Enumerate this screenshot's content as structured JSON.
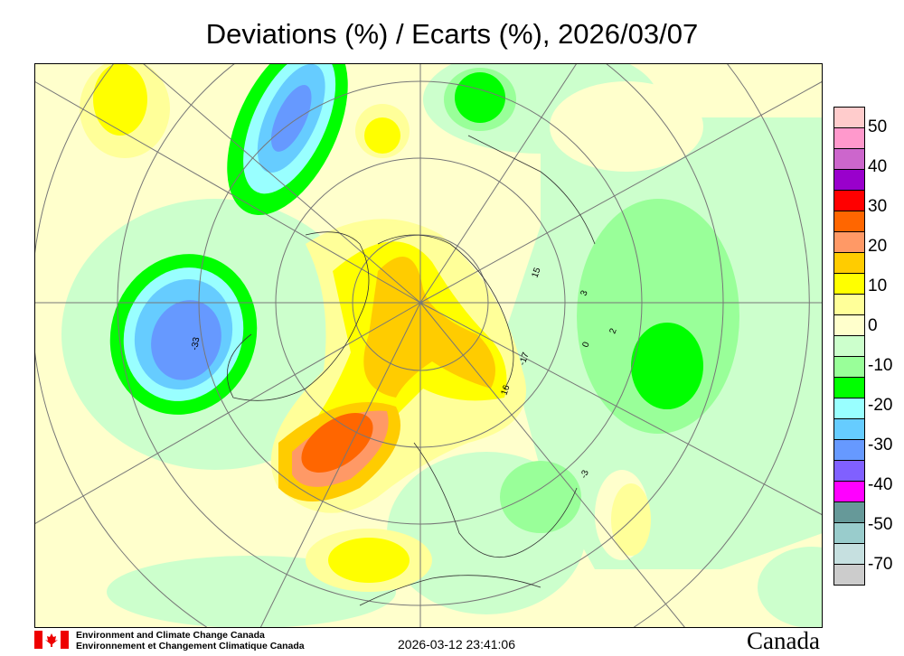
{
  "title": "Deviations (%) / Ecarts (%), 2026/03/07",
  "legend": {
    "colors": [
      "#ffcccc",
      "#ff99cc",
      "#cc66cc",
      "#9900cc",
      "#ff0000",
      "#ff6600",
      "#ff9966",
      "#ffcc00",
      "#ffff00",
      "#ffff99",
      "#ffffcc",
      "#ccffcc",
      "#99ff99",
      "#00ff00",
      "#99ffff",
      "#66ccff",
      "#6699ff",
      "#8060ff",
      "#ff00ff",
      "#669999",
      "#99cccc",
      "#c6e0e0",
      "#cccccc"
    ],
    "labels": [
      "50",
      "40",
      "30",
      "20",
      "10",
      "0",
      "-10",
      "-20",
      "-30",
      "-40",
      "-50",
      "-70"
    ]
  },
  "stations": [
    {
      "text": "15"
    },
    {
      "text": "-33"
    },
    {
      "text": "3"
    },
    {
      "text": "2"
    },
    {
      "text": "-17"
    },
    {
      "text": "16"
    },
    {
      "text": "-3"
    },
    {
      "text": "0"
    }
  ],
  "footer": {
    "org_en": "Environment and Climate Change Canada",
    "org_fr": "Environnement et Changement Climatique Canada",
    "timestamp": "2026-03-12 23:41:06",
    "wordmark": "Canada"
  }
}
